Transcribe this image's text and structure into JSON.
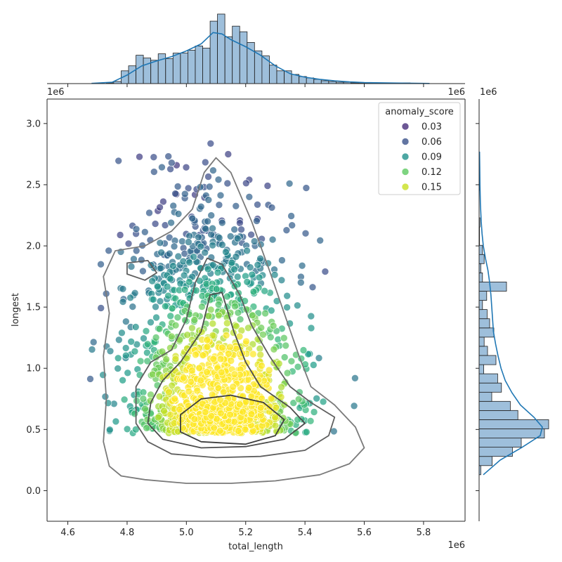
{
  "chart_data": {
    "type": "scatter",
    "subtype": "jointplot",
    "xlabel": "total_length",
    "ylabel": "longest",
    "x_multiplier_label": "1e6",
    "y_multiplier_label": "1e6",
    "xlim": [
      4.53,
      5.94
    ],
    "ylim": [
      -0.25,
      3.2
    ],
    "x_ticks": [
      4.6,
      4.8,
      5.0,
      5.2,
      5.4,
      5.6,
      5.8
    ],
    "y_ticks": [
      0.0,
      0.5,
      1.0,
      1.5,
      2.0,
      2.5,
      3.0
    ],
    "x_tick_labels": [
      "4.6",
      "4.8",
      "5.0",
      "5.2",
      "5.4",
      "5.6",
      "5.8"
    ],
    "y_tick_labels": [
      "0.0",
      "0.5",
      "1.0",
      "1.5",
      "2.0",
      "2.5",
      "3.0"
    ],
    "grid": false,
    "hue_variable": "anomaly_score",
    "legend": {
      "title": "anomaly_score",
      "placement": "top-right",
      "entries": [
        {
          "label": "0.03",
          "color": "#472d7b"
        },
        {
          "label": "0.06",
          "color": "#3b528b"
        },
        {
          "label": "0.09",
          "color": "#21918c"
        },
        {
          "label": "0.12",
          "color": "#5ec962"
        },
        {
          "label": "0.15",
          "color": "#c8e020"
        }
      ]
    },
    "hue_range": [
      0.0,
      0.17
    ],
    "colormap": "viridis",
    "kde_levels": [
      {
        "level": 1,
        "points": [
          [
            4.78,
            0.12
          ],
          [
            4.86,
            0.09
          ],
          [
            5.0,
            0.06
          ],
          [
            5.15,
            0.06
          ],
          [
            5.3,
            0.08
          ],
          [
            5.45,
            0.13
          ],
          [
            5.55,
            0.22
          ],
          [
            5.6,
            0.35
          ],
          [
            5.57,
            0.52
          ],
          [
            5.5,
            0.7
          ],
          [
            5.42,
            0.85
          ],
          [
            5.38,
            1.1
          ],
          [
            5.33,
            1.45
          ],
          [
            5.28,
            1.8
          ],
          [
            5.22,
            2.2
          ],
          [
            5.15,
            2.6
          ],
          [
            5.1,
            2.72
          ],
          [
            5.06,
            2.6
          ],
          [
            5.02,
            2.3
          ],
          [
            4.95,
            2.12
          ],
          [
            4.86,
            2.0
          ],
          [
            4.76,
            1.96
          ],
          [
            4.72,
            1.75
          ],
          [
            4.74,
            1.45
          ],
          [
            4.72,
            1.1
          ],
          [
            4.73,
            0.75
          ],
          [
            4.72,
            0.4
          ],
          [
            4.74,
            0.2
          ]
        ]
      },
      {
        "level": 2,
        "points": [
          [
            4.83,
            0.55
          ],
          [
            4.87,
            0.4
          ],
          [
            4.95,
            0.3
          ],
          [
            5.1,
            0.27
          ],
          [
            5.25,
            0.28
          ],
          [
            5.4,
            0.33
          ],
          [
            5.48,
            0.45
          ],
          [
            5.5,
            0.6
          ],
          [
            5.42,
            0.72
          ],
          [
            5.35,
            0.85
          ],
          [
            5.28,
            1.1
          ],
          [
            5.22,
            1.35
          ],
          [
            5.18,
            1.6
          ],
          [
            5.12,
            1.85
          ],
          [
            5.07,
            1.9
          ],
          [
            5.03,
            1.7
          ],
          [
            5.0,
            1.4
          ],
          [
            4.95,
            1.15
          ],
          [
            4.88,
            1.05
          ],
          [
            4.83,
            0.85
          ]
        ]
      },
      {
        "level": 3,
        "points": [
          [
            4.87,
            0.55
          ],
          [
            4.92,
            0.42
          ],
          [
            5.05,
            0.35
          ],
          [
            5.2,
            0.36
          ],
          [
            5.33,
            0.42
          ],
          [
            5.4,
            0.55
          ],
          [
            5.35,
            0.68
          ],
          [
            5.25,
            0.85
          ],
          [
            5.2,
            1.05
          ],
          [
            5.16,
            1.3
          ],
          [
            5.12,
            1.62
          ],
          [
            5.08,
            1.6
          ],
          [
            5.05,
            1.3
          ],
          [
            4.98,
            1.05
          ],
          [
            4.92,
            0.9
          ],
          [
            4.88,
            0.72
          ]
        ]
      },
      {
        "level": 4,
        "points": [
          [
            4.98,
            0.48
          ],
          [
            5.05,
            0.4
          ],
          [
            5.2,
            0.38
          ],
          [
            5.3,
            0.45
          ],
          [
            5.33,
            0.58
          ],
          [
            5.26,
            0.72
          ],
          [
            5.15,
            0.78
          ],
          [
            5.05,
            0.75
          ],
          [
            4.98,
            0.62
          ]
        ]
      },
      {
        "level": 5,
        "points": [
          [
            4.8,
            1.77
          ],
          [
            4.86,
            1.72
          ],
          [
            4.9,
            1.78
          ],
          [
            4.87,
            1.88
          ],
          [
            4.8,
            1.86
          ]
        ]
      }
    ],
    "x_marginal": {
      "type": "histogram",
      "bin_edges": [
        4.68,
        4.705,
        4.73,
        4.755,
        4.78,
        4.805,
        4.83,
        4.855,
        4.88,
        4.905,
        4.93,
        4.955,
        4.98,
        5.005,
        5.03,
        5.055,
        5.08,
        5.105,
        5.13,
        5.155,
        5.18,
        5.205,
        5.23,
        5.255,
        5.28,
        5.305,
        5.33,
        5.355,
        5.38,
        5.405,
        5.43,
        5.455,
        5.48,
        5.505,
        5.53,
        5.555,
        5.58,
        5.605,
        5.63,
        5.655,
        5.68,
        5.705,
        5.73,
        5.755,
        5.78,
        5.805,
        5.83
      ],
      "counts": [
        0,
        0,
        1,
        3,
        18,
        25,
        40,
        36,
        33,
        42,
        35,
        43,
        43,
        47,
        53,
        50,
        88,
        98,
        66,
        81,
        73,
        58,
        46,
        39,
        26,
        18,
        18,
        13,
        10,
        8,
        6,
        4,
        3,
        2,
        2,
        1,
        1,
        1,
        0,
        1,
        0,
        0,
        1,
        0,
        0,
        0
      ],
      "kde": [
        [
          4.68,
          0.3
        ],
        [
          4.75,
          2
        ],
        [
          4.8,
          12
        ],
        [
          4.85,
          25
        ],
        [
          4.9,
          32
        ],
        [
          4.95,
          38
        ],
        [
          5.0,
          46
        ],
        [
          5.05,
          56
        ],
        [
          5.09,
          72
        ],
        [
          5.12,
          70
        ],
        [
          5.15,
          62
        ],
        [
          5.2,
          52
        ],
        [
          5.25,
          40
        ],
        [
          5.3,
          25
        ],
        [
          5.35,
          14
        ],
        [
          5.4,
          9
        ],
        [
          5.45,
          6
        ],
        [
          5.5,
          4
        ],
        [
          5.55,
          2.5
        ],
        [
          5.6,
          1.5
        ],
        [
          5.7,
          0.8
        ],
        [
          5.82,
          0.2
        ]
      ]
    },
    "y_marginal": {
      "type": "histogram",
      "bin_edges": [
        0.13,
        0.205,
        0.28,
        0.355,
        0.43,
        0.505,
        0.58,
        0.655,
        0.73,
        0.805,
        0.88,
        0.955,
        1.03,
        1.105,
        1.18,
        1.255,
        1.33,
        1.405,
        1.48,
        1.555,
        1.63,
        1.705,
        1.78,
        1.855,
        1.93,
        2.005,
        2.08,
        2.155,
        2.23,
        2.305,
        2.38,
        2.455,
        2.53,
        2.605,
        2.68,
        2.755
      ],
      "counts": [
        4,
        31,
        79,
        100,
        155,
        165,
        92,
        74,
        30,
        53,
        44,
        11,
        40,
        20,
        12,
        35,
        25,
        19,
        8,
        18,
        65,
        8,
        4,
        12,
        8,
        1,
        1,
        2,
        0,
        0,
        0,
        1,
        0,
        0,
        1
      ],
      "kde": [
        [
          0.13,
          10
        ],
        [
          0.25,
          50
        ],
        [
          0.35,
          100
        ],
        [
          0.45,
          145
        ],
        [
          0.52,
          150
        ],
        [
          0.6,
          130
        ],
        [
          0.7,
          98
        ],
        [
          0.8,
          78
        ],
        [
          0.9,
          62
        ],
        [
          1.0,
          52
        ],
        [
          1.1,
          45
        ],
        [
          1.2,
          39
        ],
        [
          1.3,
          34
        ],
        [
          1.4,
          32
        ],
        [
          1.5,
          30
        ],
        [
          1.6,
          28
        ],
        [
          1.7,
          25
        ],
        [
          1.8,
          21
        ],
        [
          1.9,
          15
        ],
        [
          2.0,
          10
        ],
        [
          2.1,
          7
        ],
        [
          2.2,
          5
        ],
        [
          2.35,
          3
        ],
        [
          2.5,
          2
        ],
        [
          2.65,
          1.5
        ],
        [
          2.77,
          1
        ]
      ]
    }
  }
}
